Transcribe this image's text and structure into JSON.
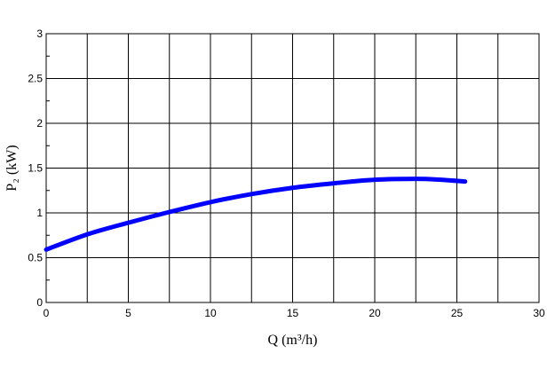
{
  "chart_data": {
    "type": "line",
    "title": "",
    "xlabel": "Q (m³/h)",
    "ylabel": "P₂ (kW)",
    "xlim": [
      0,
      30
    ],
    "ylim": [
      0,
      3
    ],
    "x_ticks": [
      "0",
      "5",
      "10",
      "15",
      "20",
      "25",
      "30"
    ],
    "y_ticks": [
      "0",
      "0.5",
      "1",
      "1.5",
      "2",
      "2.5",
      "3"
    ],
    "grid": true,
    "legend": "none",
    "series": [
      {
        "color": "#0000ff",
        "x": [
          0,
          2.5,
          5,
          7.5,
          10,
          12.5,
          15,
          17.5,
          20,
          22.5,
          24,
          25.5
        ],
        "y": [
          0.59,
          0.76,
          0.89,
          1.01,
          1.12,
          1.21,
          1.28,
          1.33,
          1.37,
          1.38,
          1.37,
          1.35
        ]
      }
    ]
  }
}
